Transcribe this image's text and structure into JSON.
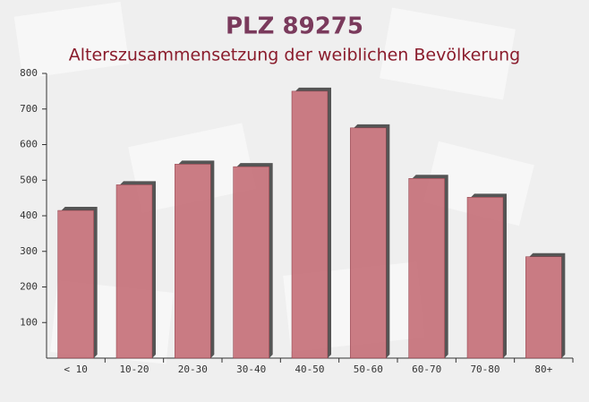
{
  "chart_data": {
    "type": "bar",
    "title": "PLZ 89275",
    "subtitle": "Alterszusammensetzung der weiblichen Bevölkerung",
    "categories": [
      "< 10",
      "10-20",
      "20-30",
      "30-40",
      "40-50",
      "50-60",
      "60-70",
      "70-80",
      "80+"
    ],
    "values": [
      415,
      487,
      545,
      538,
      750,
      647,
      505,
      452,
      285
    ],
    "color": "#c26670",
    "ylim": [
      0,
      800
    ],
    "yticks": [
      100,
      200,
      300,
      400,
      500,
      600,
      700,
      800
    ],
    "grid": false
  }
}
